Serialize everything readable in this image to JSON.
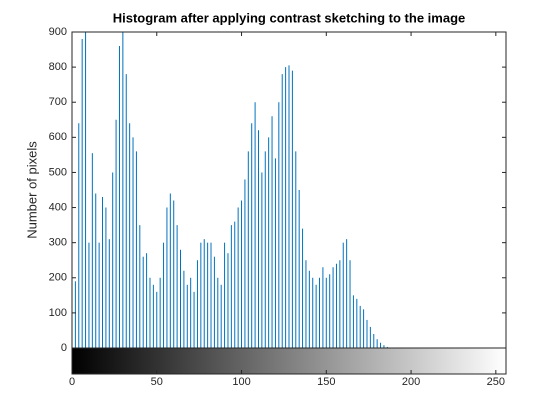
{
  "chart_data": {
    "type": "stem",
    "title": "Histogram after applying contrast sketching to the image",
    "ylabel": "Number of pixels",
    "color": "#0072bd",
    "x": [
      0,
      2,
      4,
      6,
      8,
      10,
      12,
      14,
      16,
      18,
      20,
      22,
      24,
      26,
      28,
      30,
      32,
      34,
      36,
      38,
      40,
      42,
      44,
      46,
      48,
      50,
      52,
      54,
      56,
      58,
      60,
      62,
      64,
      66,
      68,
      70,
      72,
      74,
      76,
      78,
      80,
      82,
      84,
      86,
      88,
      90,
      92,
      94,
      96,
      98,
      100,
      102,
      104,
      106,
      108,
      110,
      112,
      114,
      116,
      118,
      120,
      122,
      124,
      126,
      128,
      130,
      132,
      134,
      136,
      138,
      140,
      142,
      144,
      146,
      148,
      150,
      152,
      154,
      156,
      158,
      160,
      162,
      164,
      166,
      168,
      170,
      172,
      174,
      176,
      178,
      180,
      182,
      184,
      186
    ],
    "values": [
      40,
      190,
      640,
      880,
      900,
      300,
      555,
      440,
      300,
      430,
      400,
      310,
      500,
      650,
      860,
      900,
      780,
      640,
      600,
      560,
      350,
      260,
      270,
      200,
      180,
      160,
      200,
      300,
      400,
      440,
      420,
      350,
      280,
      220,
      180,
      200,
      160,
      250,
      300,
      310,
      300,
      300,
      260,
      200,
      180,
      300,
      270,
      350,
      360,
      400,
      420,
      480,
      560,
      640,
      700,
      620,
      500,
      560,
      600,
      660,
      540,
      700,
      780,
      800,
      805,
      790,
      560,
      450,
      340,
      250,
      220,
      200,
      180,
      200,
      230,
      200,
      210,
      230,
      240,
      250,
      300,
      310,
      250,
      150,
      140,
      120,
      110,
      80,
      60,
      40,
      25,
      15,
      8,
      3
    ],
    "xlim": [
      0,
      256
    ],
    "ylim": [
      0,
      900
    ],
    "xticks": [
      0,
      50,
      100,
      150,
      200,
      250
    ],
    "yticks": [
      0,
      100,
      200,
      300,
      400,
      500,
      600,
      700,
      800,
      900
    ]
  }
}
